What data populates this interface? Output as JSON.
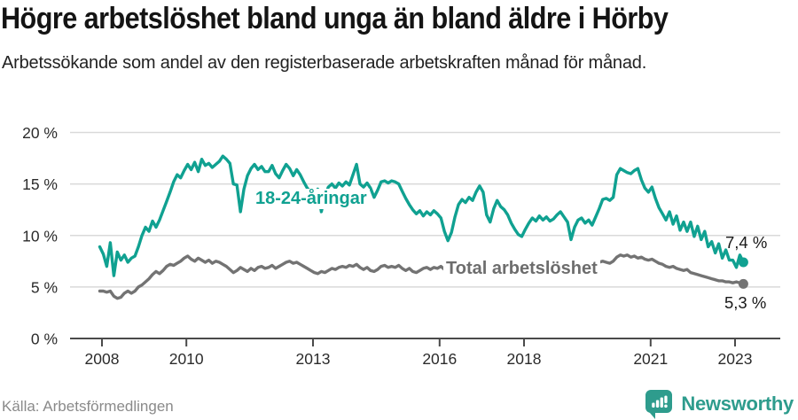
{
  "header": {
    "title": "Högre arbetslöshet bland unga än bland äldre i Hörby",
    "subtitle": "Arbetssökande som andel av den registerbaserade arbetskraften månad för månad."
  },
  "chart_data": {
    "type": "line",
    "frequency": "monthly",
    "x_start": "2008-01",
    "x_end": "2023-04",
    "unit": "%",
    "ylim": [
      0,
      20
    ],
    "y_ticks": [
      0,
      5,
      10,
      15,
      20
    ],
    "y_tick_labels": [
      "0 %",
      "5 %",
      "10 %",
      "15 %",
      "20 %"
    ],
    "x_ticks": [
      2008,
      2010,
      2013,
      2016,
      2018,
      2021,
      2023
    ],
    "x_tick_labels": [
      "2008",
      "2010",
      "2013",
      "2016",
      "2018",
      "2021",
      "2023"
    ],
    "grid": "horizontal",
    "series": [
      {
        "id": "young",
        "name": "18-24-åringar",
        "color": "#10A191",
        "end_label": "7,4 %",
        "end_value": 7.4,
        "values": [
          8.9,
          8.2,
          7.0,
          9.3,
          6.1,
          8.4,
          7.6,
          8.1,
          7.4,
          7.8,
          8.0,
          8.9,
          10.0,
          10.8,
          10.4,
          11.4,
          10.8,
          11.5,
          12.4,
          13.3,
          14.2,
          15.2,
          15.9,
          15.6,
          16.3,
          16.9,
          16.4,
          17.1,
          16.2,
          17.4,
          16.8,
          17.0,
          16.6,
          16.9,
          17.2,
          17.7,
          17.4,
          17.0,
          15.0,
          14.9,
          12.3,
          14.5,
          15.8,
          16.5,
          16.9,
          16.4,
          16.7,
          16.2,
          16.2,
          16.8,
          16.0,
          15.6,
          16.3,
          16.9,
          16.5,
          15.8,
          16.4,
          15.9,
          15.2,
          14.6,
          14.2,
          13.7,
          14.5,
          12.3,
          13.8,
          14.7,
          15.0,
          14.6,
          15.1,
          14.8,
          15.2,
          14.9,
          15.9,
          16.9,
          15.0,
          14.7,
          15.1,
          14.6,
          13.7,
          14.4,
          15.2,
          15.3,
          15.1,
          15.3,
          15.2,
          15.0,
          14.3,
          13.6,
          13.0,
          12.5,
          12.1,
          12.4,
          11.9,
          12.3,
          12.0,
          12.4,
          12.1,
          11.7,
          10.4,
          9.5,
          10.3,
          11.8,
          13.0,
          13.5,
          13.2,
          13.7,
          13.4,
          14.2,
          14.8,
          14.2,
          12.0,
          11.3,
          12.6,
          13.4,
          12.8,
          12.5,
          12.0,
          11.2,
          10.6,
          10.1,
          9.9,
          10.6,
          11.2,
          11.7,
          11.4,
          11.9,
          11.5,
          11.8,
          11.4,
          11.6,
          12.0,
          12.3,
          11.8,
          11.3,
          9.6,
          10.8,
          11.5,
          11.7,
          11.2,
          11.5,
          11.0,
          11.8,
          12.6,
          13.5,
          13.6,
          13.4,
          13.7,
          15.9,
          16.5,
          16.3,
          16.1,
          16.0,
          16.3,
          16.5,
          15.4,
          14.6,
          14.2,
          14.7,
          13.6,
          12.7,
          12.1,
          11.5,
          12.3,
          11.1,
          11.9,
          10.5,
          11.3,
          10.4,
          11.3,
          9.9,
          10.9,
          9.6,
          10.4,
          8.9,
          9.4,
          8.3,
          9.2,
          7.8,
          8.6,
          7.6,
          7.6,
          6.9,
          8.1,
          7.4
        ]
      },
      {
        "id": "total",
        "name": "Total arbetslöshet",
        "color": "#737373",
        "end_label": "5,3 %",
        "end_value": 5.3,
        "values": [
          4.6,
          4.6,
          4.5,
          4.6,
          4.1,
          3.9,
          4.0,
          4.4,
          4.6,
          4.4,
          4.6,
          5.0,
          5.2,
          5.5,
          5.8,
          6.2,
          6.5,
          6.3,
          6.6,
          7.0,
          7.2,
          7.1,
          7.3,
          7.5,
          7.8,
          8.0,
          7.7,
          7.5,
          7.8,
          7.6,
          7.4,
          7.6,
          7.3,
          7.5,
          7.4,
          7.2,
          7.0,
          6.7,
          6.4,
          6.6,
          6.9,
          6.7,
          6.5,
          6.8,
          6.6,
          6.9,
          7.0,
          6.8,
          6.9,
          7.1,
          6.8,
          7.0,
          7.2,
          7.4,
          7.5,
          7.3,
          7.4,
          7.2,
          7.0,
          6.8,
          6.6,
          6.4,
          6.3,
          6.5,
          6.4,
          6.6,
          6.8,
          6.7,
          6.9,
          7.0,
          6.9,
          7.1,
          7.0,
          7.2,
          6.9,
          6.7,
          6.9,
          6.6,
          6.5,
          6.7,
          7.0,
          7.1,
          6.9,
          7.0,
          6.9,
          7.1,
          6.8,
          6.6,
          6.8,
          6.5,
          6.4,
          6.6,
          6.8,
          6.9,
          6.7,
          6.9,
          6.8,
          7.0,
          6.7,
          6.5,
          6.7,
          6.6,
          6.8,
          7.0,
          6.9,
          7.1,
          7.0,
          6.9,
          7.0,
          7.1,
          6.9,
          6.8,
          7.0,
          6.9,
          7.1,
          7.0,
          6.9,
          7.1,
          7.0,
          7.2,
          7.1,
          7.0,
          6.9,
          7.0,
          6.8,
          6.9,
          7.0,
          6.9,
          7.1,
          7.0,
          7.2,
          7.1,
          7.0,
          7.1,
          7.0,
          7.2,
          7.1,
          7.3,
          7.2,
          7.1,
          7.3,
          7.2,
          7.4,
          7.5,
          7.4,
          7.3,
          7.5,
          7.9,
          8.1,
          8.0,
          8.1,
          7.9,
          8.0,
          7.8,
          7.9,
          7.7,
          7.6,
          7.7,
          7.5,
          7.3,
          7.2,
          7.0,
          6.9,
          7.0,
          6.8,
          6.7,
          6.6,
          6.7,
          6.4,
          6.3,
          6.2,
          6.1,
          6.0,
          5.9,
          5.8,
          5.7,
          5.6,
          5.6,
          5.5,
          5.5,
          5.4,
          5.5,
          5.4,
          5.3
        ]
      }
    ]
  },
  "footer": {
    "source": "Källa: Arbetsförmedlingen",
    "brand": "Newsworthy"
  },
  "colors": {
    "accent_teal": "#10A191",
    "line_gray": "#737373",
    "gridline": "#d9d9d9",
    "axis": "#4a4a4a",
    "brand_teal": "#2E9C8D",
    "tick_text": "#2b2b2b",
    "source_text": "#8a8a8a"
  }
}
